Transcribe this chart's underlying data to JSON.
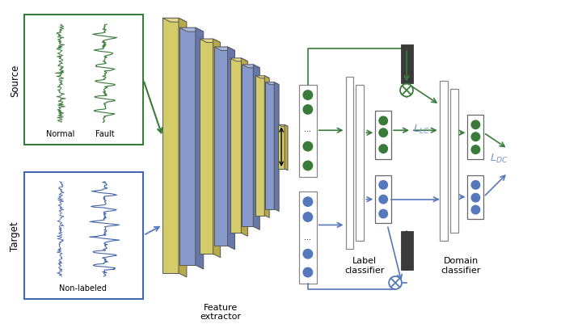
{
  "bg_color": "#ffffff",
  "green_dark": "#3a7a3a",
  "green_mid": "#4a9a4a",
  "blue_dark": "#4466aa",
  "blue_mid": "#5577bb",
  "blue_light": "#7799cc",
  "yellow_face": "#d4cc6a",
  "yellow_side": "#b8aa48",
  "yellow_top": "#e0d888",
  "blue_face": "#8899cc",
  "blue_side": "#6677aa",
  "blue_top": "#aabbdd",
  "dark_gray": "#3a3a3a",
  "mid_gray": "#888888",
  "source_box": "#3a7a3a",
  "target_box": "#4466aa",
  "arrow_green": "#3a7a3a",
  "arrow_blue": "#5577bb",
  "text_black": "#222222",
  "source_text": "Source",
  "target_text": "Target",
  "normal_text": "Normal",
  "fault_text": "Fault",
  "nonlabeled_text": "Non-labeled",
  "feat_ext_text": "Feature\nextractor",
  "label_cls_text": "Label\nclassifier",
  "domain_cls_text": "Domain\nclassifier",
  "llc_text": "$L_{LC}$",
  "ldc_text": "$L_{DC}$"
}
